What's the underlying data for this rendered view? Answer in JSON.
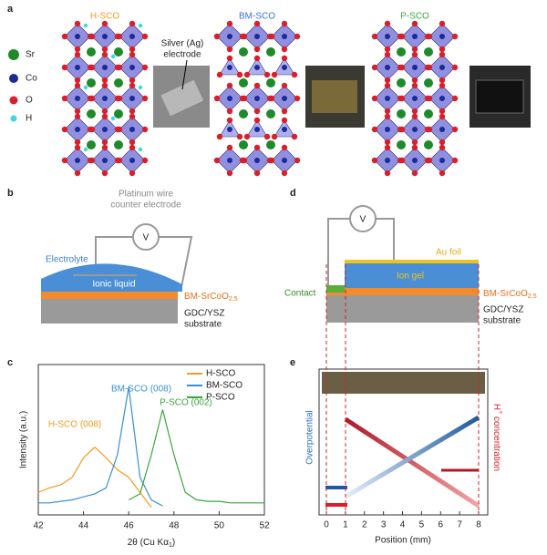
{
  "panel_labels": [
    "a",
    "b",
    "c",
    "d",
    "e"
  ],
  "panel_a": {
    "legend": [
      "Sr",
      "Co",
      "O",
      "H"
    ],
    "titles": [
      "H-SCO",
      "BM-SCO",
      "P-SCO"
    ],
    "electrode_label": [
      "Silver (Ag)",
      "electrode"
    ]
  },
  "panel_b": {
    "wire_label": [
      "Platinum wire",
      "counter electrode"
    ],
    "meter": "V",
    "electrolyte": "Electrolyte",
    "ionic_liquid": "Ionic liquid",
    "film": [
      "BM-SrCoO",
      "2.5"
    ],
    "substrate": [
      "GDC/YSZ",
      "substrate"
    ]
  },
  "panel_d": {
    "meter": "V",
    "au_foil": "Au foil",
    "ion_gel": "Ion gel",
    "contact": "Contact",
    "film": [
      "BM-SrCoO",
      "2.5"
    ],
    "substrate": [
      "GDC/YSZ",
      "substrate"
    ]
  },
  "chart_data": [
    {
      "type": "line",
      "xlabel": [
        "2θ (Cu Kα",
        "1",
        ")"
      ],
      "ylabel": "Intensity (a.u.)",
      "x": [
        42,
        42.5,
        43,
        43.5,
        44,
        44.5,
        45,
        45.5,
        46,
        46.5,
        47,
        47.5,
        48,
        48.5,
        49,
        49.5,
        50,
        50.5,
        51,
        51.5,
        52
      ],
      "xlim": [
        42,
        52
      ],
      "xticks": [
        42,
        44,
        46,
        48,
        50,
        52
      ],
      "ylim": [
        0,
        100
      ],
      "series": [
        {
          "name": "H-SCO",
          "color": "#f39a22",
          "values": [
            15,
            18,
            20,
            25,
            38,
            45,
            38,
            30,
            25,
            15,
            5,
            null,
            null,
            null,
            null,
            null,
            null,
            null,
            null,
            null,
            null
          ]
        },
        {
          "name": "BM-SCO",
          "color": "#3b8fd1",
          "values": [
            8,
            8,
            9,
            10,
            12,
            14,
            18,
            40,
            85,
            25,
            10,
            6,
            null,
            null,
            null,
            null,
            null,
            null,
            null,
            null,
            null
          ]
        },
        {
          "name": "P-SCO",
          "color": "#3aa53a",
          "values": [
            null,
            null,
            null,
            null,
            null,
            null,
            null,
            null,
            10,
            14,
            40,
            70,
            40,
            15,
            10,
            9,
            9,
            8,
            8,
            8,
            8
          ]
        }
      ],
      "annotations": [
        "H-SCO (008)",
        "BM-SCO (008)",
        "P-SCO (002)"
      ]
    },
    {
      "type": "schematic",
      "xlabel": "Position (mm)",
      "xlim": [
        0,
        8
      ],
      "xticks": [
        0,
        1,
        2,
        3,
        4,
        5,
        6,
        7,
        8
      ],
      "ylabel_left": "Overpotential",
      "ylabel_right": [
        "H",
        "+",
        " concentration"
      ]
    }
  ]
}
